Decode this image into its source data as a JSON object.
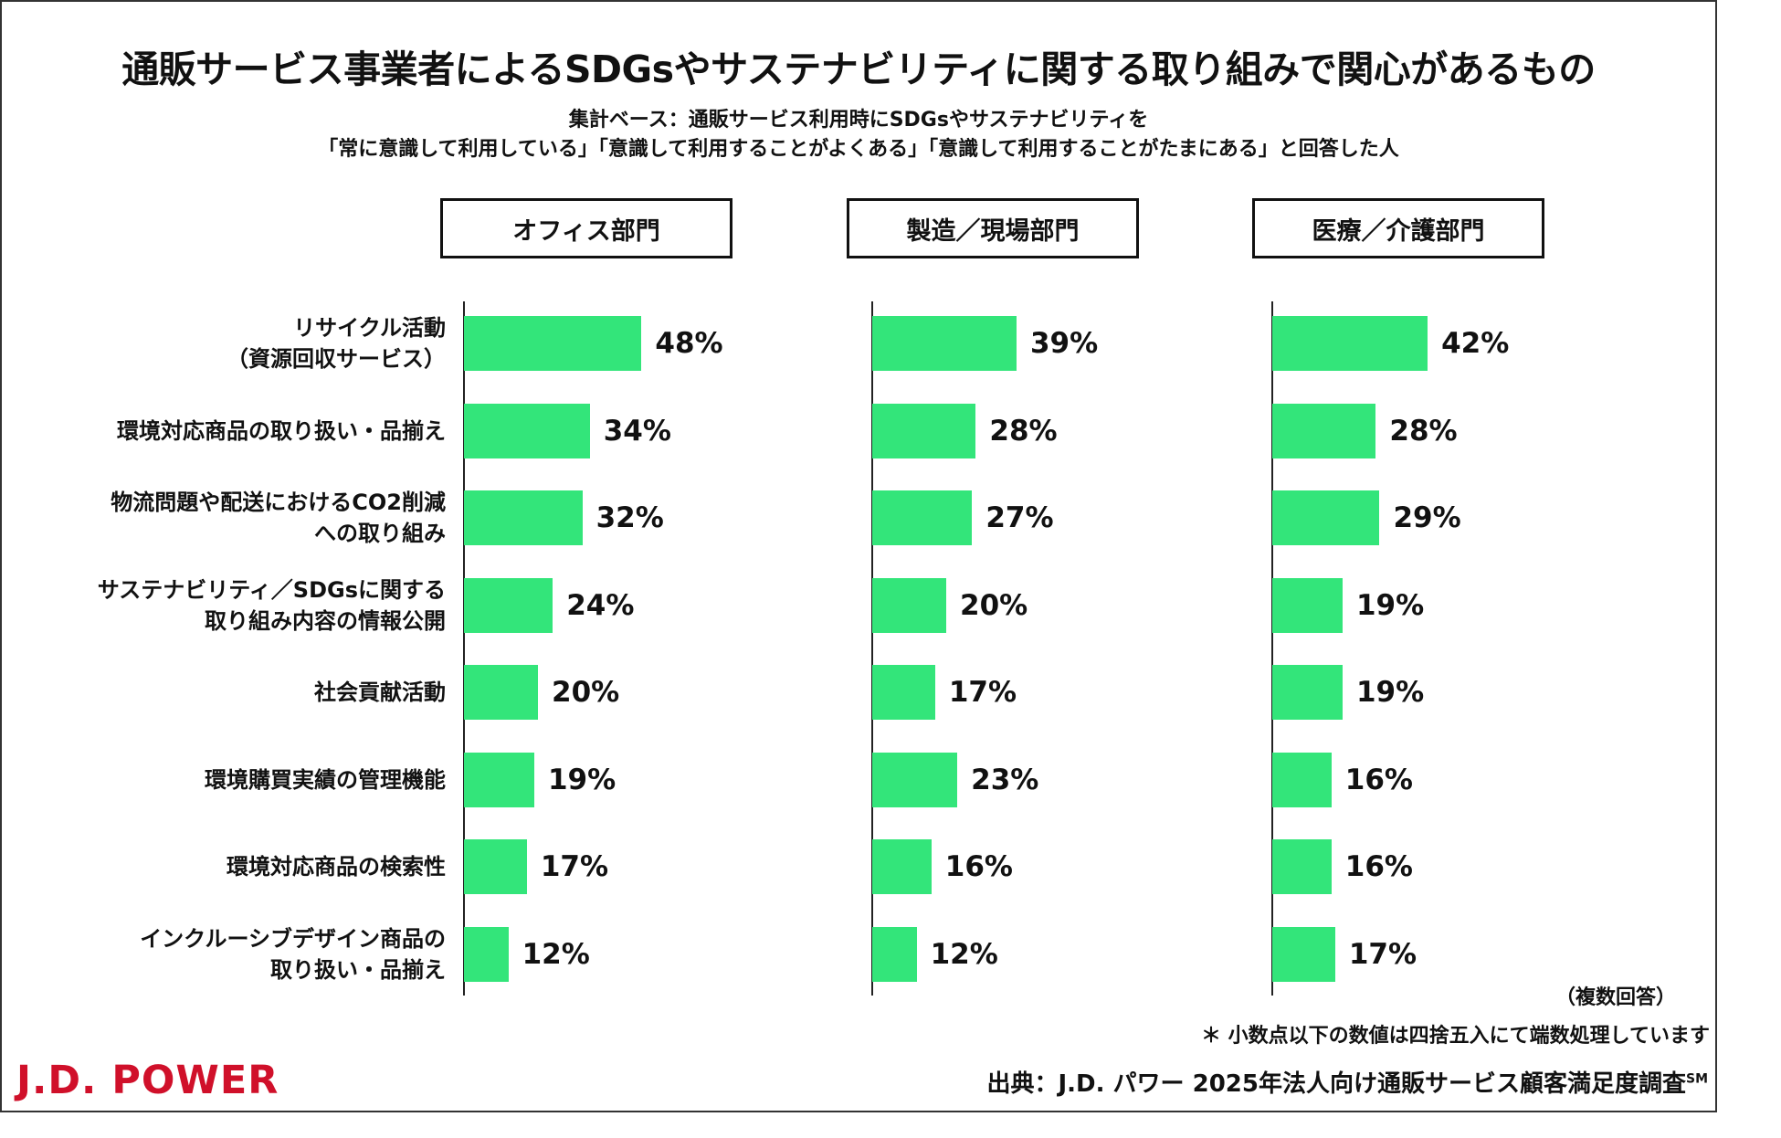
{
  "title": "通販サービス事業者によるSDGsやサステナビリティに関する取り組みで関心があるもの",
  "subtitle_line1": "集計ベース：通販サービス利用時にSDGsやサステナビリティを",
  "subtitle_line2": "「常に意識して利用している」「意識して利用することがよくある」「意識して利用することがたまにある」と回答した人",
  "multi_answer_note": "（複数回答）",
  "rounding_note": "＊ 小数点以下の数値は四捨五入にて端数処理しています",
  "source_text": "出典：J.D. パワー 2025年法人向け通販サービス顧客満足度調査",
  "source_mark": "SM",
  "logo_text": "J.D. POWER",
  "colors": {
    "bar": "#33e57a",
    "logo": "#d0102a",
    "axis": "#222222"
  },
  "chart_data": {
    "type": "bar",
    "orientation": "horizontal",
    "unit": "%",
    "categories": [
      [
        "リサイクル活動",
        "（資源回収サービス）"
      ],
      [
        "環境対応商品の取り扱い・品揃え"
      ],
      [
        "物流問題や配送におけるCO2削減",
        "への取り組み"
      ],
      [
        "サステナビリティ／SDGsに関する",
        "取り組み内容の情報公開"
      ],
      [
        "社会貢献活動"
      ],
      [
        "環境購買実績の管理機能"
      ],
      [
        "環境対応商品の検索性"
      ],
      [
        "インクルーシブデザイン商品の",
        "取り扱い・品揃え"
      ]
    ],
    "panels": [
      {
        "name": "オフィス部門",
        "values": [
          48,
          34,
          32,
          24,
          20,
          19,
          17,
          12
        ]
      },
      {
        "name": "製造／現場部門",
        "values": [
          39,
          28,
          27,
          20,
          17,
          23,
          16,
          12
        ]
      },
      {
        "name": "医療／介護部門",
        "values": [
          42,
          28,
          29,
          19,
          19,
          16,
          16,
          17
        ]
      }
    ]
  }
}
